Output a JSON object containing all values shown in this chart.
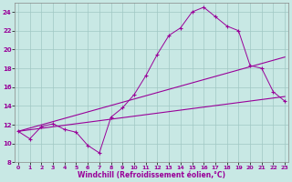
{
  "xlabel": "Windchill (Refroidissement éolien,°C)",
  "background_color": "#c8e8e4",
  "line_color": "#990099",
  "grid_color": "#a0c8c4",
  "xlim": [
    -0.3,
    23.3
  ],
  "ylim": [
    8,
    25
  ],
  "xticks": [
    0,
    1,
    2,
    3,
    4,
    5,
    6,
    7,
    8,
    9,
    10,
    11,
    12,
    13,
    14,
    15,
    16,
    17,
    18,
    19,
    20,
    21,
    22,
    23
  ],
  "yticks": [
    8,
    10,
    12,
    14,
    16,
    18,
    20,
    22,
    24
  ],
  "curve1_x": [
    0,
    1,
    2,
    3,
    4,
    5,
    6,
    7,
    8,
    9,
    10,
    11,
    12,
    13,
    14,
    15,
    16,
    17,
    18,
    19,
    20,
    21,
    22,
    23
  ],
  "curve1_y": [
    11.3,
    10.5,
    11.8,
    12.1,
    11.5,
    11.2,
    9.8,
    9.0,
    12.8,
    13.8,
    15.2,
    17.2,
    19.5,
    21.5,
    22.3,
    24.0,
    24.5,
    23.5,
    22.5,
    22.0,
    18.3,
    18.0,
    15.5,
    14.5
  ],
  "trend1_x": [
    0,
    23
  ],
  "trend1_y": [
    11.3,
    19.2
  ],
  "trend2_x": [
    0,
    23
  ],
  "trend2_y": [
    11.3,
    15.0
  ]
}
